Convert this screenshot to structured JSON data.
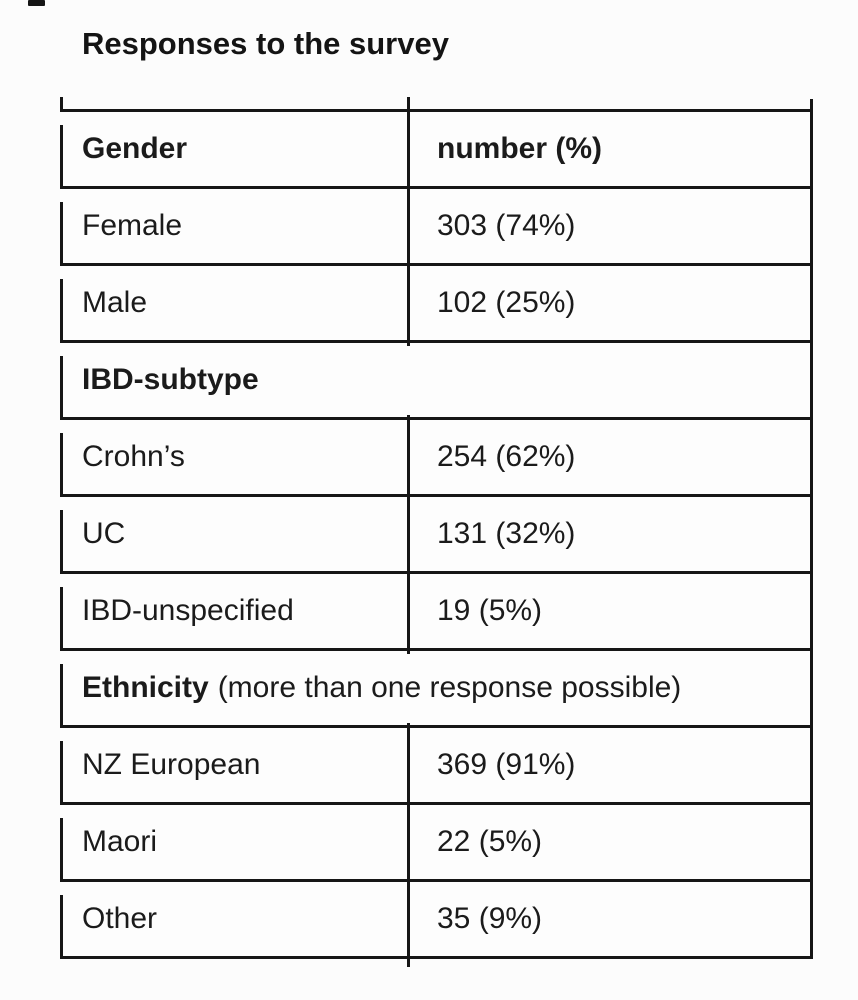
{
  "title": "Responses to the survey",
  "colors": {
    "line": "#161616",
    "text": "#1b1b1b",
    "background": "#fcfcfc"
  },
  "table": {
    "rows": [
      {
        "type": "header",
        "label": "Gender",
        "value": "number (%)"
      },
      {
        "type": "data",
        "label": "Female",
        "value": "303 (74%)"
      },
      {
        "type": "data",
        "label": "Male",
        "value": "102 (25%)"
      },
      {
        "type": "section",
        "label": "IBD-subtype",
        "note": ""
      },
      {
        "type": "data",
        "label": "Crohn’s",
        "value": "254 (62%)"
      },
      {
        "type": "data",
        "label": "UC",
        "value": "131 (32%)"
      },
      {
        "type": "data",
        "label": "IBD-unspecified",
        "value": "19 (5%)"
      },
      {
        "type": "section",
        "label": "Ethnicity",
        "note": "(more than one response possible)"
      },
      {
        "type": "data",
        "label": "NZ European",
        "value": "369 (91%)"
      },
      {
        "type": "data",
        "label": "Maori",
        "value": "22 (5%)"
      },
      {
        "type": "data",
        "label": "Other",
        "value": "35 (9%)"
      }
    ]
  },
  "chart_data": {
    "type": "table",
    "title": "Responses to the survey",
    "value_column": "number (%)",
    "sections": [
      {
        "name": "Gender",
        "items": [
          {
            "label": "Female",
            "count": 303,
            "percent": 74
          },
          {
            "label": "Male",
            "count": 102,
            "percent": 25
          }
        ]
      },
      {
        "name": "IBD-subtype",
        "items": [
          {
            "label": "Crohn’s",
            "count": 254,
            "percent": 62
          },
          {
            "label": "UC",
            "count": 131,
            "percent": 32
          },
          {
            "label": "IBD-unspecified",
            "count": 19,
            "percent": 5
          }
        ]
      },
      {
        "name": "Ethnicity",
        "note": "more than one response possible",
        "items": [
          {
            "label": "NZ European",
            "count": 369,
            "percent": 91
          },
          {
            "label": "Maori",
            "count": 22,
            "percent": 5
          },
          {
            "label": "Other",
            "count": 35,
            "percent": 9
          }
        ]
      }
    ]
  }
}
